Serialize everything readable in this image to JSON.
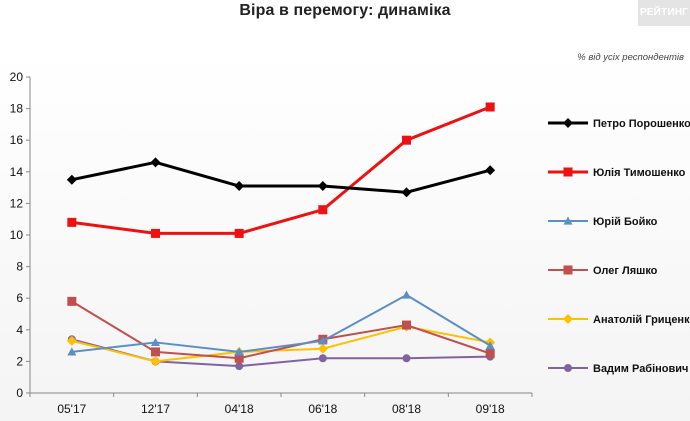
{
  "header": {
    "title": "Віра в перемогу: динаміка",
    "logo_text": "РЕЙТИНГ",
    "subtitle": "% від усіх респондентів"
  },
  "chart_data": {
    "type": "line",
    "title": "Віра в перемогу: динаміка",
    "subtitle": "% від усіх респондентів",
    "xlabel": "",
    "ylabel": "",
    "categories": [
      "05'17",
      "12'17",
      "04'18",
      "06'18",
      "08'18",
      "09'18"
    ],
    "ylim": [
      0,
      20
    ],
    "yticks": [
      0,
      2,
      4,
      6,
      8,
      10,
      12,
      14,
      16,
      18,
      20
    ],
    "grid": false,
    "legend_position": "right",
    "series": [
      {
        "name": "Петро Порошенко",
        "color": "#000000",
        "marker": "diamond",
        "values": [
          13.5,
          14.6,
          13.1,
          13.1,
          12.7,
          14.1
        ]
      },
      {
        "name": "Юлія Тимошенко",
        "color": "#ee1111",
        "marker": "square",
        "values": [
          10.8,
          10.1,
          10.1,
          11.6,
          16.0,
          18.1
        ]
      },
      {
        "name": "Юрій Бойко",
        "color": "#5b8fc7",
        "marker": "triangle",
        "values": [
          2.6,
          3.2,
          2.6,
          3.3,
          6.2,
          3.0
        ]
      },
      {
        "name": "Олег Ляшко",
        "color": "#c0504d",
        "marker": "square",
        "values": [
          5.8,
          2.6,
          2.2,
          3.4,
          4.3,
          2.5
        ]
      },
      {
        "name": "Анатолій Гриценко",
        "color": "#ffc000",
        "marker": "diamond",
        "values": [
          3.3,
          2.0,
          2.6,
          2.8,
          4.2,
          3.2
        ]
      },
      {
        "name": "Вадим Рабінович",
        "color": "#8064a2",
        "marker": "circle",
        "values": [
          3.4,
          2.0,
          1.7,
          2.2,
          2.2,
          2.3
        ]
      }
    ]
  }
}
